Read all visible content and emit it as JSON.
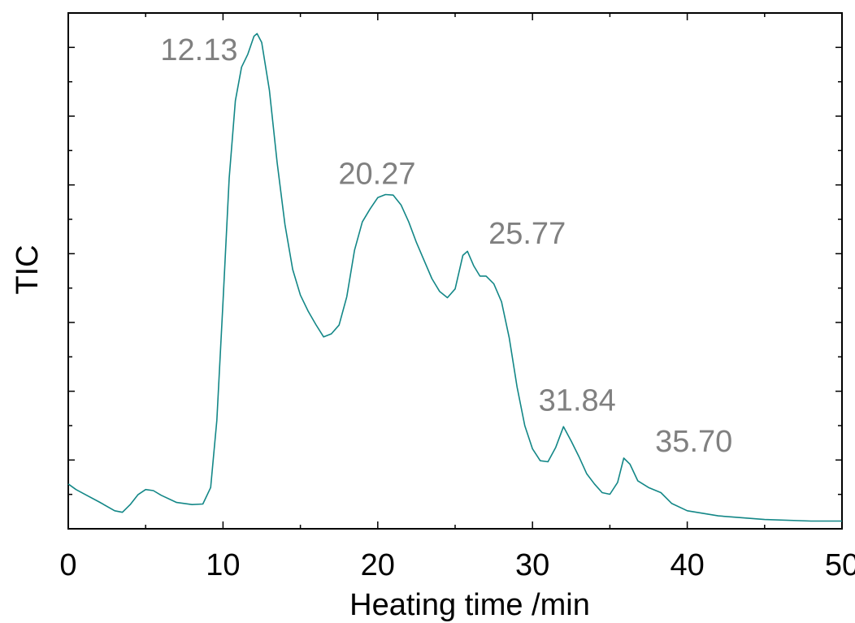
{
  "chart_data": {
    "type": "line",
    "title": "",
    "xlabel": "Heating time /min",
    "ylabel": "TIC",
    "xlim": [
      0,
      50
    ],
    "ylim": [
      0,
      100
    ],
    "x_ticks": [
      0,
      10,
      20,
      30,
      40,
      50
    ],
    "x_tick_labels": [
      "0",
      "10",
      "20",
      "30",
      "40",
      "50"
    ],
    "y_tick_labels_shown": false,
    "grid": false,
    "legend": "none",
    "colors": {
      "line": "#138787",
      "peak_labels": "#808080",
      "axes": "#000000"
    },
    "annotations": [
      {
        "text": "12.13",
        "x": 12.13,
        "y": 89.0
      },
      {
        "text": "20.27",
        "x": 20.27,
        "y": 64.3
      },
      {
        "text": "25.77",
        "x": 25.77,
        "y": 53.1
      },
      {
        "text": "31.84",
        "x": 31.84,
        "y": 19.8
      },
      {
        "text": "35.70",
        "x": 35.7,
        "y": 13.7
      }
    ],
    "series": [
      {
        "x": [
          0,
          0.5,
          1,
          2,
          3,
          3.5,
          4,
          4.5,
          5,
          5.5,
          6,
          7,
          8,
          8.7,
          9.2,
          9.6,
          10,
          10.4,
          10.8,
          11.2,
          11.6,
          12.0,
          12.2,
          12.5,
          13,
          13.5,
          14,
          14.5,
          15,
          15.5,
          16,
          16.5,
          17,
          17.5,
          18,
          18.5,
          19,
          19.5,
          20,
          20.5,
          21,
          21.5,
          22,
          22.5,
          23,
          23.5,
          24,
          24.5,
          25,
          25.5,
          25.8,
          26.2,
          26.6,
          27,
          27.5,
          28,
          28.5,
          29,
          29.5,
          30,
          30.5,
          31,
          31.5,
          32,
          32.5,
          33,
          33.5,
          34,
          34.5,
          35,
          35.5,
          35.9,
          36.3,
          36.8,
          37.5,
          38.3,
          39,
          40,
          42,
          45,
          48,
          50
        ],
        "y": [
          8.7,
          7.6,
          6.8,
          5.2,
          3.5,
          3.2,
          4.7,
          6.6,
          7.6,
          7.4,
          6.5,
          5.1,
          4.7,
          4.8,
          8.0,
          21.0,
          44.0,
          68.0,
          83.0,
          89.5,
          92.0,
          95.5,
          96.0,
          94.3,
          85.0,
          71.0,
          59.0,
          50.3,
          45.3,
          42.2,
          39.6,
          37.2,
          37.8,
          39.5,
          45.0,
          54.0,
          59.5,
          62.0,
          64.2,
          64.8,
          64.7,
          62.8,
          59.5,
          55.5,
          52.0,
          48.5,
          46.0,
          44.8,
          46.5,
          53.0,
          53.8,
          51.0,
          49.0,
          49.0,
          47.5,
          44.0,
          37.0,
          27.5,
          20.0,
          15.5,
          13.2,
          13.0,
          15.8,
          19.8,
          17.0,
          14.0,
          10.7,
          8.7,
          7.0,
          6.7,
          9.0,
          13.7,
          12.5,
          9.3,
          8.0,
          7.0,
          4.9,
          3.5,
          2.5,
          1.8,
          1.5,
          1.5
        ]
      }
    ]
  }
}
